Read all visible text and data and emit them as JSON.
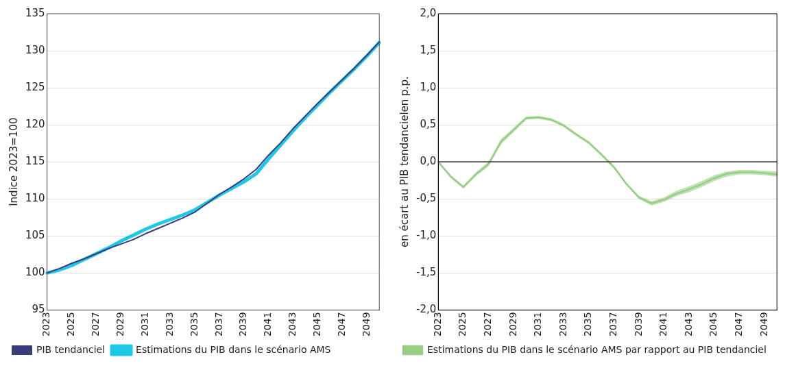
{
  "chart_data": [
    {
      "type": "line",
      "ylabel": "Indice 2023=100",
      "categories": [
        "2023",
        null,
        "2025",
        null,
        "2027",
        null,
        "2029",
        null,
        "2031",
        null,
        "2033",
        null,
        "2035",
        null,
        "2037",
        null,
        "2039",
        null,
        "2041",
        null,
        "2043",
        null,
        "2045",
        null,
        "2047",
        null,
        "2049",
        null
      ],
      "ylim": [
        95,
        135
      ],
      "yticks": [
        95,
        100,
        105,
        110,
        115,
        120,
        125,
        130,
        135
      ],
      "grid": "y",
      "legend": "bottom",
      "marker": "none",
      "line_style": "solid",
      "series": [
        {
          "name": "Estimations du PIB dans le scénario AMS",
          "color": "#1ec8e6",
          "values": [
            100,
            100.4,
            101.0,
            101.8,
            102.6,
            103.4,
            104.3,
            105.1,
            105.9,
            106.6,
            107.2,
            107.8,
            108.5,
            109.5,
            110.5,
            111.4,
            112.3,
            113.4,
            115.4,
            117.3,
            119.2,
            121.0,
            122.7,
            124.4,
            126.0,
            127.6,
            129.3,
            131.1
          ]
        },
        {
          "name": "PIB tendanciel",
          "color": "#3b3b7a",
          "values": [
            100,
            100.6,
            101.3,
            101.9,
            102.6,
            103.3,
            103.9,
            104.5,
            105.3,
            106.0,
            106.7,
            107.4,
            108.2,
            109.4,
            110.6,
            111.6,
            112.7,
            114.0,
            115.9,
            117.6,
            119.5,
            121.2,
            122.9,
            124.5,
            126.1,
            127.7,
            129.4,
            131.2
          ]
        }
      ]
    },
    {
      "type": "line",
      "ylabel": "en écart au PIB tendancielen p.p.",
      "categories": [
        "2023",
        null,
        "2025",
        null,
        "2027",
        null,
        "2029",
        null,
        "2031",
        null,
        "2033",
        null,
        "2035",
        null,
        "2037",
        null,
        "2039",
        null,
        "2041",
        null,
        "2043",
        null,
        "2045",
        null,
        "2047",
        null,
        "2049",
        null
      ],
      "ylim": [
        -2,
        2
      ],
      "yticks": [
        {
          "value": -2,
          "label": "-2,0"
        },
        {
          "value": -1.5,
          "label": "-1,5"
        },
        {
          "value": -1,
          "label": "-1,0"
        },
        {
          "value": -0.5,
          "label": "-0,5"
        },
        {
          "value": 0,
          "label": "0,0"
        },
        {
          "value": 0.5,
          "label": "0,5"
        },
        {
          "value": 1,
          "label": "1,0"
        },
        {
          "value": 1.5,
          "label": "1,5"
        },
        {
          "value": 2,
          "label": "2,0"
        }
      ],
      "grid": "y",
      "legend": "bottom",
      "marker": "none",
      "line_style": "solid",
      "ref_lines": [
        {
          "axis": "y",
          "value": 0,
          "color": "#000000"
        }
      ],
      "series": [
        {
          "name": "Estimations du PIB dans le scénario AMS par rapport au PIB tendanciel",
          "color": "#98cf84",
          "values": [
            0,
            -0.2,
            -0.34,
            -0.17,
            -0.03,
            0.27,
            0.43,
            0.59,
            0.6,
            0.57,
            0.49,
            0.37,
            0.26,
            0.1,
            -0.07,
            -0.3,
            -0.48,
            -0.56,
            -0.51,
            -0.43,
            -0.37,
            -0.3,
            -0.22,
            -0.16,
            -0.14,
            -0.14,
            -0.15,
            -0.17
          ],
          "lower": [
            -0.01,
            -0.22,
            -0.36,
            -0.19,
            -0.06,
            0.24,
            0.4,
            0.57,
            0.58,
            0.55,
            0.47,
            0.35,
            0.24,
            0.08,
            -0.09,
            -0.31,
            -0.5,
            -0.59,
            -0.54,
            -0.46,
            -0.41,
            -0.34,
            -0.26,
            -0.2,
            -0.17,
            -0.17,
            -0.18,
            -0.2
          ],
          "upper": [
            0.01,
            -0.18,
            -0.32,
            -0.14,
            0,
            0.31,
            0.46,
            0.61,
            0.62,
            0.59,
            0.51,
            0.39,
            0.28,
            0.12,
            -0.05,
            -0.28,
            -0.46,
            -0.53,
            -0.48,
            -0.39,
            -0.33,
            -0.26,
            -0.18,
            -0.13,
            -0.11,
            -0.11,
            -0.12,
            -0.13
          ]
        }
      ]
    }
  ]
}
